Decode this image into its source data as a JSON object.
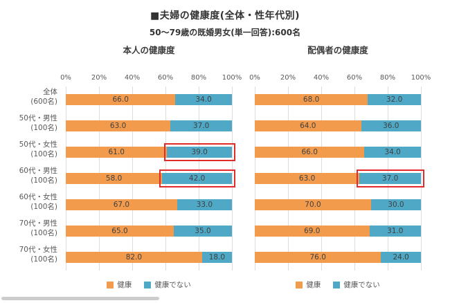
{
  "page": {
    "title": "■夫婦の健康度(全体・性年代別)",
    "subtitle": "50〜79歳の既婚男女(単一回答):600名"
  },
  "colors": {
    "healthy": "#F29B4C",
    "not_healthy": "#4FA8C5",
    "highlight": "#E02B2B",
    "grid": "#DCDCDC",
    "text": "#595959"
  },
  "chart_data": [
    {
      "type": "bar",
      "stacked": true,
      "orientation": "horizontal",
      "title": "本人の健康度",
      "categories": [
        {
          "label": "全体",
          "sub": "(600名)"
        },
        {
          "label": "50代・男性",
          "sub": "(100名)"
        },
        {
          "label": "50代・女性",
          "sub": "(100名)"
        },
        {
          "label": "60代・男性",
          "sub": "(100名)"
        },
        {
          "label": "60代・女性",
          "sub": "(100名)"
        },
        {
          "label": "70代・男性",
          "sub": "(100名)"
        },
        {
          "label": "70代・女性",
          "sub": "(100名)"
        }
      ],
      "series": [
        {
          "name": "健康",
          "values": [
            66.0,
            63.0,
            61.0,
            58.0,
            67.0,
            65.0,
            82.0
          ]
        },
        {
          "name": "健康でない",
          "values": [
            34.0,
            37.0,
            39.0,
            42.0,
            33.0,
            35.0,
            18.0
          ]
        }
      ],
      "highlights": [
        {
          "row": 2,
          "series": 1
        },
        {
          "row": 3,
          "series": 1
        }
      ],
      "x_ticks": [
        "0%",
        "20%",
        "40%",
        "60%",
        "80%",
        "100%"
      ],
      "xlim": [
        0,
        100
      ],
      "grid": true,
      "legend": [
        "健康",
        "健康でない"
      ],
      "legend_position": "bottom"
    },
    {
      "type": "bar",
      "stacked": true,
      "orientation": "horizontal",
      "title": "配偶者の健康度",
      "categories": [
        {
          "label": "全体",
          "sub": "(600名)"
        },
        {
          "label": "50代・男性",
          "sub": "(100名)"
        },
        {
          "label": "50代・女性",
          "sub": "(100名)"
        },
        {
          "label": "60代・男性",
          "sub": "(100名)"
        },
        {
          "label": "60代・女性",
          "sub": "(100名)"
        },
        {
          "label": "70代・男性",
          "sub": "(100名)"
        },
        {
          "label": "70代・女性",
          "sub": "(100名)"
        }
      ],
      "series": [
        {
          "name": "健康",
          "values": [
            68.0,
            64.0,
            66.0,
            63.0,
            70.0,
            69.0,
            76.0
          ]
        },
        {
          "name": "健康でない",
          "values": [
            32.0,
            36.0,
            34.0,
            37.0,
            30.0,
            31.0,
            24.0
          ]
        }
      ],
      "highlights": [
        {
          "row": 3,
          "series": 1
        }
      ],
      "x_ticks": [
        "0%",
        "20%",
        "40%",
        "60%",
        "80%",
        "100%"
      ],
      "xlim": [
        0,
        100
      ],
      "grid": true,
      "legend": [
        "健康",
        "健康でない"
      ],
      "legend_position": "bottom"
    }
  ]
}
